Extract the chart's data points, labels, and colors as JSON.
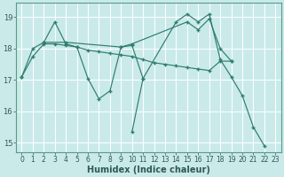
{
  "xlabel": "Humidex (Indice chaleur)",
  "background_color": "#caeaea",
  "grid_color": "#ffffff",
  "line_color": "#2e7d6e",
  "xlim": [
    -0.5,
    23.5
  ],
  "ylim": [
    14.7,
    19.45
  ],
  "yticks": [
    15,
    16,
    17,
    18,
    19
  ],
  "xticks": [
    0,
    1,
    2,
    3,
    4,
    5,
    6,
    7,
    8,
    9,
    10,
    11,
    12,
    13,
    14,
    15,
    16,
    17,
    18,
    19,
    20,
    21,
    22,
    23
  ],
  "series": [
    {
      "x": [
        0,
        1,
        2,
        3,
        4,
        5,
        6,
        7,
        8,
        9,
        10,
        11
      ],
      "y": [
        17.1,
        18.0,
        18.2,
        18.85,
        18.15,
        18.05,
        17.05,
        16.4,
        16.65,
        18.05,
        18.1,
        17.05
      ]
    },
    {
      "x": [
        2,
        4,
        9,
        10,
        15,
        16,
        17,
        18,
        19
      ],
      "y": [
        18.2,
        18.2,
        18.05,
        18.15,
        18.85,
        18.6,
        18.95,
        18.0,
        17.6
      ]
    },
    {
      "x": [
        0,
        1,
        2,
        3,
        4,
        5,
        6,
        7,
        8,
        9,
        10,
        11,
        12,
        13,
        14,
        15,
        16,
        17,
        18,
        19
      ],
      "y": [
        17.1,
        17.75,
        18.15,
        18.15,
        18.1,
        18.05,
        17.95,
        17.9,
        17.85,
        17.8,
        17.75,
        17.65,
        17.55,
        17.5,
        17.45,
        17.4,
        17.35,
        17.3,
        17.6,
        17.6
      ]
    },
    {
      "x": [
        10,
        11,
        14,
        15,
        16,
        17,
        18,
        19,
        20,
        21,
        22
      ],
      "y": [
        15.35,
        17.05,
        18.85,
        19.1,
        18.85,
        19.1,
        17.65,
        17.1,
        16.5,
        15.5,
        14.9
      ]
    }
  ]
}
